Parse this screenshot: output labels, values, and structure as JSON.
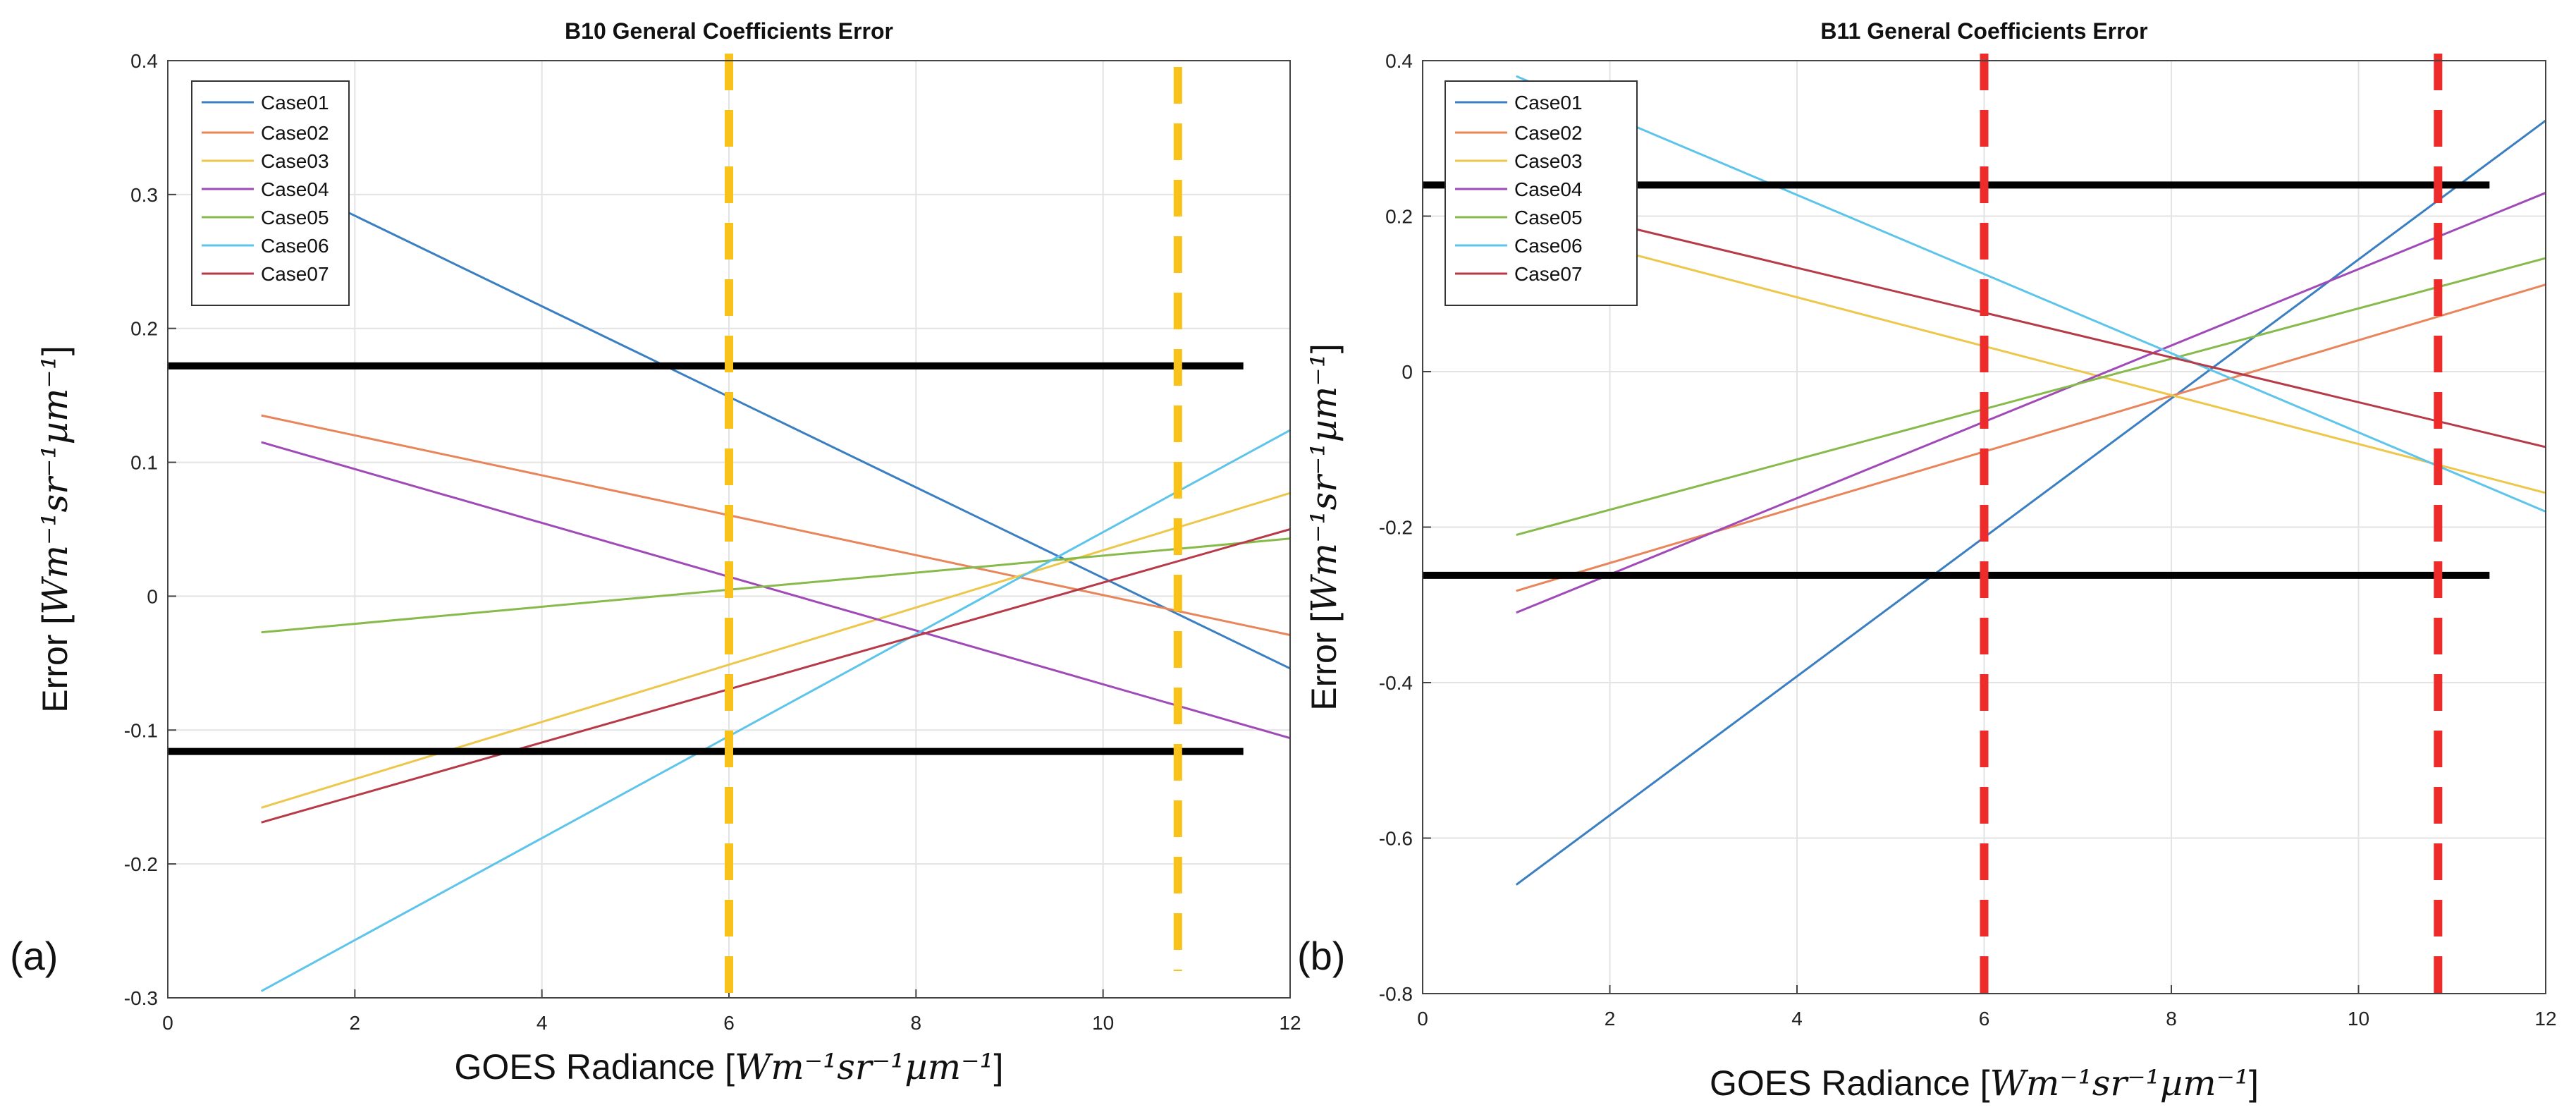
{
  "figure": {
    "panels": [
      {
        "id": "a",
        "panel_label": "(a)",
        "x_unit_label": "GOES Radiance",
        "y_unit_label": "Error",
        "unit_expr": "Wm⁻¹sr⁻¹µm⁻¹",
        "threshold_color": "#000000",
        "marker_color": "#F8C21A"
      },
      {
        "id": "b",
        "panel_label": "(b)",
        "x_unit_label": "GOES Radiance",
        "y_unit_label": "Error",
        "unit_expr": "Wm⁻¹sr⁻¹µm⁻¹",
        "threshold_color": "#000000",
        "marker_color": "#EE2B2B"
      }
    ]
  },
  "chart_data": [
    {
      "type": "line",
      "title": "B10 General Coefficients Error",
      "xlabel": "GOES Radiance [Wm⁻¹sr⁻¹µm⁻¹]",
      "ylabel": "Error [Wm⁻¹sr⁻¹µm⁻¹]",
      "xlim": [
        0,
        12
      ],
      "ylim": [
        -0.3,
        0.4
      ],
      "xticks": [
        0,
        2,
        4,
        6,
        8,
        10,
        12
      ],
      "yticks": [
        -0.3,
        -0.2,
        -0.1,
        0,
        0.1,
        0.2,
        0.3,
        0.4
      ],
      "grid": true,
      "legend_position": "top-left",
      "series": [
        {
          "name": "Case01",
          "color": "#3A7FC1",
          "x": [
            1,
            12
          ],
          "y": [
            0.318,
            -0.054
          ]
        },
        {
          "name": "Case02",
          "color": "#E8855A",
          "x": [
            1,
            12
          ],
          "y": [
            0.135,
            -0.029
          ]
        },
        {
          "name": "Case03",
          "color": "#EDC74B",
          "x": [
            1,
            12
          ],
          "y": [
            -0.158,
            0.077
          ]
        },
        {
          "name": "Case04",
          "color": "#A04AB8",
          "x": [
            1,
            12
          ],
          "y": [
            0.115,
            -0.106
          ]
        },
        {
          "name": "Case05",
          "color": "#86BA4B",
          "x": [
            1,
            12
          ],
          "y": [
            -0.027,
            0.043
          ]
        },
        {
          "name": "Case06",
          "color": "#5DC4EA",
          "x": [
            1,
            12
          ],
          "y": [
            -0.295,
            0.124
          ]
        },
        {
          "name": "Case07",
          "color": "#B73A49",
          "x": [
            1,
            12
          ],
          "y": [
            -0.169,
            0.05
          ]
        }
      ],
      "horizontal_lines": [
        {
          "y": 0.172,
          "x_from": 0,
          "x_to": 11.5,
          "color": "#000000"
        },
        {
          "y": -0.116,
          "x_from": 0,
          "x_to": 11.5,
          "color": "#000000"
        }
      ],
      "vertical_dashed_lines": [
        {
          "x": 6,
          "y_from": -0.3,
          "y_to": 0.4,
          "color": "#F8C21A"
        },
        {
          "x": 10.8,
          "y_from": -0.28,
          "y_to": 0.39,
          "color": "#F8C21A"
        }
      ]
    },
    {
      "type": "line",
      "title": "B11 General Coefficients Error",
      "xlabel": "GOES Radiance [Wm⁻¹sr⁻¹µm⁻¹]",
      "ylabel": "Error [Wm⁻¹sr⁻¹µm⁻¹]",
      "xlim": [
        0,
        12
      ],
      "ylim": [
        -0.8,
        0.4
      ],
      "xticks": [
        0,
        2,
        4,
        6,
        8,
        10,
        12
      ],
      "yticks": [
        -0.8,
        -0.6,
        -0.4,
        -0.2,
        0,
        0.2,
        0.4
      ],
      "grid": true,
      "legend_position": "top-left",
      "series": [
        {
          "name": "Case01",
          "color": "#3A7FC1",
          "x": [
            1,
            12
          ],
          "y": [
            -0.66,
            0.323
          ]
        },
        {
          "name": "Case02",
          "color": "#E8855A",
          "x": [
            1,
            12
          ],
          "y": [
            -0.282,
            0.112
          ]
        },
        {
          "name": "Case03",
          "color": "#EDC74B",
          "x": [
            1,
            12
          ],
          "y": [
            0.19,
            -0.156
          ]
        },
        {
          "name": "Case04",
          "color": "#A04AB8",
          "x": [
            1,
            12
          ],
          "y": [
            -0.31,
            0.23
          ]
        },
        {
          "name": "Case05",
          "color": "#86BA4B",
          "x": [
            1,
            12
          ],
          "y": [
            -0.21,
            0.146
          ]
        },
        {
          "name": "Case06",
          "color": "#5DC4EA",
          "x": [
            1,
            12
          ],
          "y": [
            0.38,
            -0.18
          ]
        },
        {
          "name": "Case07",
          "color": "#B73A49",
          "x": [
            1,
            12
          ],
          "y": [
            0.22,
            -0.097
          ]
        }
      ],
      "horizontal_lines": [
        {
          "y": 0.24,
          "x_from": 0,
          "x_to": 11.4,
          "color": "#000000"
        },
        {
          "y": -0.262,
          "x_from": 0,
          "x_to": 11.4,
          "color": "#000000"
        }
      ],
      "vertical_dashed_lines": [
        {
          "x": 6,
          "y_from": -0.8,
          "y_to": 0.4,
          "color": "#EE2B2B"
        },
        {
          "x": 10.85,
          "y_from": -0.8,
          "y_to": 0.4,
          "color": "#EE2B2B"
        }
      ]
    }
  ]
}
